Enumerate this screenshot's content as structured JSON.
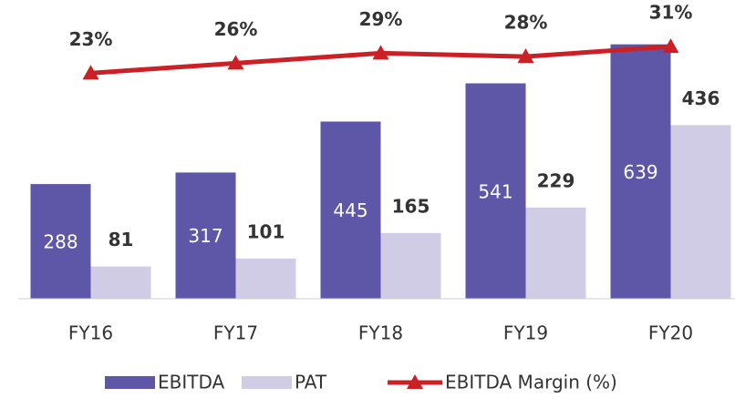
{
  "chart_data": {
    "type": "bar-line",
    "categories": [
      "FY16",
      "FY17",
      "FY18",
      "FY19",
      "FY20"
    ],
    "series": [
      {
        "name": "EBITDA",
        "type": "bar",
        "color": "#5e57a8",
        "values": [
          288,
          317,
          445,
          541,
          639
        ]
      },
      {
        "name": "PAT",
        "type": "bar",
        "color": "#d0cce6",
        "values": [
          81,
          101,
          165,
          229,
          436
        ]
      },
      {
        "name": "EBITDA Margin (%)",
        "type": "line",
        "axis": "y2",
        "color": "#cc2027",
        "values": [
          23,
          26,
          29,
          28,
          31
        ],
        "value_labels": [
          "23%",
          "26%",
          "29%",
          "28%",
          "31%"
        ]
      }
    ],
    "ylim": [
      0,
      700
    ],
    "y2lim": [
      -45,
      39
    ],
    "grid": false,
    "legend": "bottom"
  }
}
